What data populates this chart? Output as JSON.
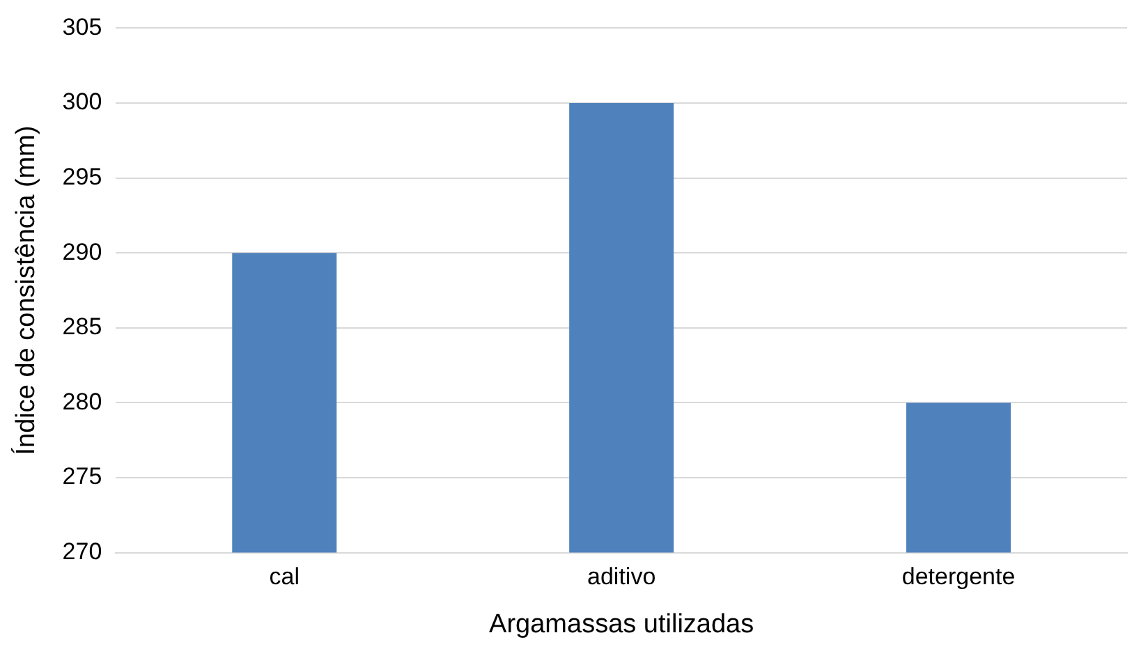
{
  "chart_data": {
    "type": "bar",
    "xlabel": "Argamassas utilizadas",
    "ylabel": "Índice de consistência (mm)",
    "categories": [
      "cal",
      "aditivo",
      "detergente"
    ],
    "values": [
      290,
      300,
      280
    ],
    "color": "#4f81bd",
    "ylim": [
      270,
      305
    ],
    "yticks": [
      270,
      275,
      280,
      285,
      290,
      295,
      300,
      305
    ],
    "grid": "y"
  }
}
